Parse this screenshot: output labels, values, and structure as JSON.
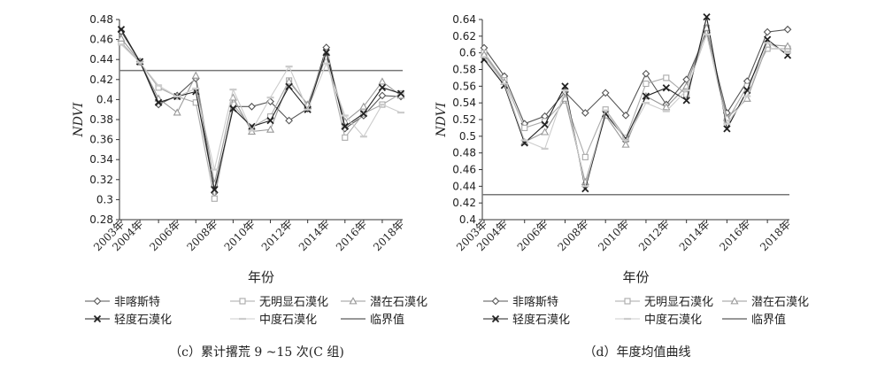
{
  "chart_data": [
    {
      "type": "line",
      "caption": "（c）累计撂荒 9 ~15 次(C 组)",
      "ylabel": "NDVI",
      "xlabel": "年份",
      "ylim": [
        0.28,
        0.48
      ],
      "yticks": [
        "0.28",
        "0.3",
        "0.32",
        "0.34",
        "0.36",
        "0.38",
        "0.4",
        "0.42",
        "0.44",
        "0.46",
        "0.48"
      ],
      "x": [
        "2003年",
        "2004年",
        "2005年",
        "2006年",
        "2007年",
        "2008年",
        "2009年",
        "2010年",
        "2011年",
        "2012年",
        "2013年",
        "2014年",
        "2015年",
        "2016年",
        "2017年",
        "2018年"
      ],
      "xticks": [
        "2003年",
        "2004年",
        "2006年",
        "2008年",
        "2010年",
        "2012年",
        "2014年",
        "2016年",
        "2018年"
      ],
      "threshold": {
        "name": "临界值",
        "value": 0.429
      },
      "series": [
        {
          "name": "非喀斯特",
          "marker": "diamond",
          "color": "#555555",
          "values": [
            0.468,
            0.438,
            0.395,
            0.404,
            0.421,
            0.307,
            0.393,
            0.393,
            0.398,
            0.379,
            0.391,
            0.452,
            0.371,
            0.384,
            0.404,
            0.403
          ]
        },
        {
          "name": "无明显石漠化",
          "marker": "square",
          "color": "#aaaaaa",
          "values": [
            0.457,
            0.437,
            0.412,
            0.403,
            0.397,
            0.301,
            0.395,
            0.372,
            0.383,
            0.419,
            0.395,
            0.443,
            0.362,
            0.386,
            0.395,
            0.406
          ]
        },
        {
          "name": "潜在石漠化",
          "marker": "triangle",
          "color": "#999999",
          "values": [
            0.461,
            0.438,
            0.401,
            0.387,
            0.424,
            0.316,
            0.402,
            0.368,
            0.37,
            0.418,
            0.395,
            0.447,
            0.378,
            0.393,
            0.418,
            0.404
          ]
        },
        {
          "name": "轻度石漠化",
          "marker": "x",
          "color": "#222222",
          "values": [
            0.47,
            0.438,
            0.397,
            0.403,
            0.408,
            0.31,
            0.391,
            0.373,
            0.379,
            0.413,
            0.39,
            0.447,
            0.373,
            0.386,
            0.412,
            0.406
          ]
        },
        {
          "name": "中度石漠化",
          "marker": "dash",
          "color": "#cccccc",
          "values": [
            0.455,
            0.437,
            0.414,
            0.403,
            0.411,
            0.33,
            0.41,
            0.369,
            0.402,
            0.433,
            0.39,
            0.436,
            0.384,
            0.363,
            0.395,
            0.387
          ]
        }
      ]
    },
    {
      "type": "line",
      "caption": "（d）年度均值曲线",
      "ylabel": "NDVI",
      "xlabel": "年份",
      "ylim": [
        0.4,
        0.64
      ],
      "yticks": [
        "0.4",
        "0.42",
        "0.44",
        "0.46",
        "0.48",
        "0.5",
        "0.52",
        "0.54",
        "0.56",
        "0.58",
        "0.6",
        "0.62",
        "0.64"
      ],
      "x": [
        "2003年",
        "2004年",
        "2005年",
        "2006年",
        "2007年",
        "2008年",
        "2009年",
        "2010年",
        "2011年",
        "2012年",
        "2013年",
        "2014年",
        "2015年",
        "2016年",
        "2017年",
        "2018年"
      ],
      "xticks": [
        "2003年",
        "2004年",
        "2006年",
        "2008年",
        "2010年",
        "2012年",
        "2014年",
        "2016年",
        "2018年"
      ],
      "threshold": {
        "name": "临界值",
        "value": 0.43
      },
      "series": [
        {
          "name": "非喀斯特",
          "marker": "diamond",
          "color": "#555555",
          "values": [
            0.606,
            0.572,
            0.515,
            0.524,
            0.553,
            0.528,
            0.552,
            0.525,
            0.575,
            0.538,
            0.568,
            0.625,
            0.528,
            0.566,
            0.625,
            0.628
          ]
        },
        {
          "name": "无明显石漠化",
          "marker": "square",
          "color": "#aaaaaa",
          "values": [
            0.6,
            0.567,
            0.51,
            0.518,
            0.543,
            0.475,
            0.532,
            0.498,
            0.563,
            0.57,
            0.55,
            0.63,
            0.518,
            0.56,
            0.605,
            0.605
          ]
        },
        {
          "name": "潜在石漠化",
          "marker": "triangle",
          "color": "#999999",
          "values": [
            0.598,
            0.565,
            0.493,
            0.505,
            0.545,
            0.445,
            0.525,
            0.49,
            0.548,
            0.535,
            0.56,
            0.63,
            0.522,
            0.545,
            0.61,
            0.608
          ]
        },
        {
          "name": "轻度石漠化",
          "marker": "x",
          "color": "#222222",
          "values": [
            0.592,
            0.561,
            0.492,
            0.514,
            0.56,
            0.437,
            0.527,
            0.497,
            0.548,
            0.558,
            0.543,
            0.643,
            0.509,
            0.555,
            0.616,
            0.597
          ]
        },
        {
          "name": "中度石漠化",
          "marker": "dash",
          "color": "#cccccc",
          "values": [
            0.595,
            0.563,
            0.495,
            0.485,
            0.555,
            0.44,
            0.531,
            0.495,
            0.54,
            0.53,
            0.555,
            0.622,
            0.515,
            0.548,
            0.612,
            0.6
          ]
        }
      ]
    }
  ]
}
